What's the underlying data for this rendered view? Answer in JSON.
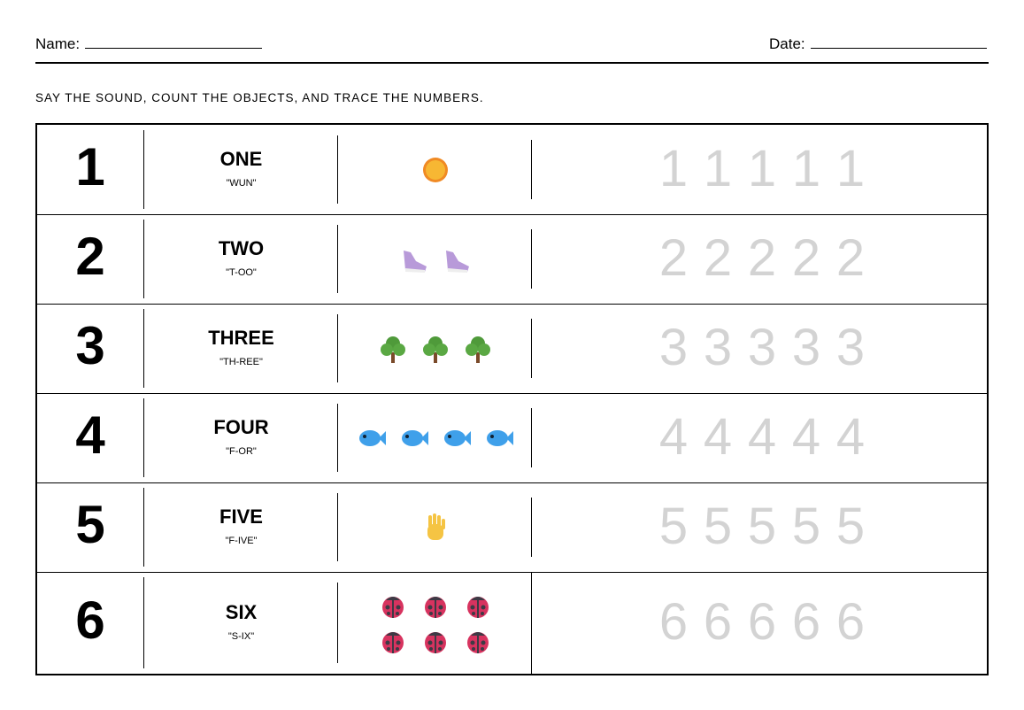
{
  "header": {
    "name_label": "Name:",
    "date_label": "Date:"
  },
  "instructions": "SAY THE SOUND, COUNT THE OBJECTS, AND TRACE THE NUMBERS.",
  "rows": [
    {
      "number": "1",
      "word": "ONE",
      "pron": "\"WUN\"",
      "object": "sun-icon",
      "count": 1,
      "trace": [
        "1",
        "1",
        "1",
        "1",
        "1"
      ]
    },
    {
      "number": "2",
      "word": "TWO",
      "pron": "\"T-OO\"",
      "object": "shoe-icon",
      "count": 2,
      "trace": [
        "2",
        "2",
        "2",
        "2",
        "2"
      ]
    },
    {
      "number": "3",
      "word": "THREE",
      "pron": "\"TH-REE\"",
      "object": "tree-icon",
      "count": 3,
      "trace": [
        "3",
        "3",
        "3",
        "3",
        "3"
      ]
    },
    {
      "number": "4",
      "word": "FOUR",
      "pron": "\"F-OR\"",
      "object": "fish-icon",
      "count": 4,
      "trace": [
        "4",
        "4",
        "4",
        "4",
        "4"
      ]
    },
    {
      "number": "5",
      "word": "FIVE",
      "pron": "\"F-IVE\"",
      "object": "hand-icon",
      "count": 1,
      "trace": [
        "5",
        "5",
        "5",
        "5",
        "5"
      ]
    },
    {
      "number": "6",
      "word": "SIX",
      "pron": "\"S-IX\"",
      "object": "ladybug-icon",
      "count": 6,
      "trace": [
        "6",
        "6",
        "6",
        "6",
        "6"
      ]
    }
  ],
  "colors": {
    "trace": "#d3d3d3"
  }
}
